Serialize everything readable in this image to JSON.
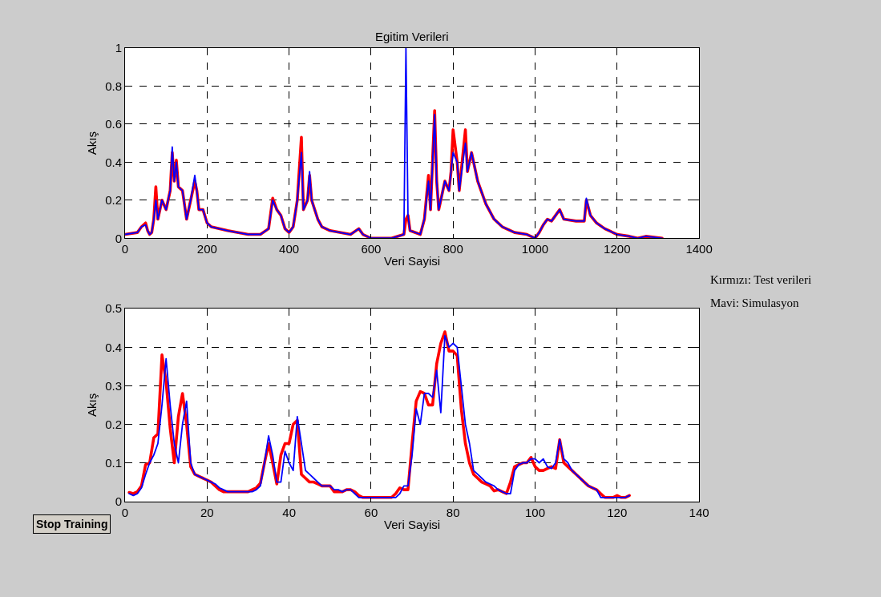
{
  "chart_data": [
    {
      "type": "line",
      "title": "Egitim Verileri",
      "xlabel": "Veri Sayisi",
      "ylabel": "Akış",
      "x": [
        0,
        30,
        40,
        50,
        55,
        60,
        65,
        70,
        75,
        80,
        90,
        100,
        110,
        115,
        120,
        125,
        130,
        140,
        150,
        160,
        170,
        175,
        180,
        190,
        200,
        210,
        250,
        300,
        330,
        350,
        360,
        370,
        380,
        390,
        400,
        410,
        420,
        430,
        435,
        445,
        450,
        455,
        470,
        480,
        500,
        550,
        570,
        580,
        600,
        650,
        680,
        685,
        690,
        695,
        720,
        730,
        740,
        745,
        755,
        760,
        765,
        770,
        780,
        790,
        795,
        800,
        810,
        815,
        830,
        835,
        845,
        850,
        860,
        880,
        900,
        920,
        950,
        980,
        1000,
        1010,
        1020,
        1030,
        1040,
        1060,
        1070,
        1100,
        1120,
        1125,
        1135,
        1150,
        1170,
        1200,
        1230,
        1250,
        1270,
        1310
      ],
      "xlim": [
        0,
        1400
      ],
      "xticks": [
        0,
        200,
        400,
        600,
        800,
        1000,
        1200,
        1400
      ],
      "ylim": [
        0,
        1
      ],
      "yticks": [
        0,
        0.2,
        0.4,
        0.6,
        0.8,
        1
      ],
      "grid": true,
      "line_style": "solid",
      "marker": "none",
      "series": [
        {
          "color": "#ff0000",
          "values": [
            0.02,
            0.03,
            0.06,
            0.08,
            0.04,
            0.02,
            0.03,
            0.1,
            0.27,
            0.1,
            0.2,
            0.15,
            0.25,
            0.45,
            0.3,
            0.41,
            0.27,
            0.25,
            0.1,
            0.2,
            0.3,
            0.25,
            0.15,
            0.15,
            0.08,
            0.06,
            0.04,
            0.02,
            0.02,
            0.05,
            0.21,
            0.15,
            0.12,
            0.05,
            0.03,
            0.06,
            0.2,
            0.53,
            0.15,
            0.2,
            0.33,
            0.2,
            0.1,
            0.06,
            0.04,
            0.02,
            0.05,
            0.02,
            0.0,
            0.0,
            0.02,
            0.1,
            0.12,
            0.04,
            0.02,
            0.1,
            0.33,
            0.15,
            0.67,
            0.3,
            0.15,
            0.2,
            0.3,
            0.25,
            0.35,
            0.57,
            0.4,
            0.25,
            0.57,
            0.35,
            0.45,
            0.4,
            0.3,
            0.18,
            0.1,
            0.06,
            0.03,
            0.02,
            0.0,
            0.03,
            0.07,
            0.1,
            0.09,
            0.15,
            0.1,
            0.09,
            0.09,
            0.2,
            0.12,
            0.08,
            0.05,
            0.02,
            0.01,
            0.0,
            0.01,
            0.0
          ]
        },
        {
          "color": "#0000ff",
          "values": [
            0.02,
            0.03,
            0.06,
            0.07,
            0.04,
            0.02,
            0.03,
            0.1,
            0.2,
            0.1,
            0.2,
            0.15,
            0.25,
            0.48,
            0.3,
            0.4,
            0.27,
            0.25,
            0.1,
            0.2,
            0.33,
            0.25,
            0.15,
            0.15,
            0.08,
            0.06,
            0.04,
            0.02,
            0.02,
            0.05,
            0.2,
            0.15,
            0.12,
            0.05,
            0.03,
            0.06,
            0.2,
            0.45,
            0.15,
            0.2,
            0.35,
            0.2,
            0.1,
            0.06,
            0.04,
            0.02,
            0.05,
            0.02,
            0.0,
            0.0,
            0.02,
            1.0,
            0.12,
            0.04,
            0.02,
            0.1,
            0.3,
            0.15,
            0.65,
            0.3,
            0.15,
            0.2,
            0.3,
            0.25,
            0.35,
            0.45,
            0.4,
            0.25,
            0.5,
            0.35,
            0.45,
            0.4,
            0.3,
            0.18,
            0.1,
            0.06,
            0.03,
            0.02,
            0.0,
            0.03,
            0.07,
            0.1,
            0.09,
            0.15,
            0.1,
            0.09,
            0.09,
            0.21,
            0.12,
            0.08,
            0.05,
            0.02,
            0.01,
            0.0,
            0.01,
            0.0
          ]
        }
      ]
    },
    {
      "type": "line",
      "xlabel": "Veri Sayisi",
      "ylabel": "Akış",
      "annotations": [
        "Kırmızı: Test verileri",
        "Mavi: Simulasyon",
        "Stop Training"
      ],
      "x": [
        1,
        2,
        3,
        4,
        5,
        6,
        7,
        8,
        9,
        10,
        11,
        12,
        13,
        14,
        15,
        16,
        17,
        18,
        19,
        20,
        21,
        22,
        23,
        24,
        25,
        26,
        27,
        28,
        29,
        30,
        31,
        32,
        33,
        34,
        35,
        36,
        37,
        38,
        39,
        40,
        41,
        42,
        43,
        44,
        45,
        46,
        47,
        48,
        49,
        50,
        51,
        52,
        53,
        54,
        55,
        56,
        57,
        58,
        59,
        60,
        61,
        62,
        63,
        64,
        65,
        66,
        67,
        68,
        69,
        70,
        71,
        72,
        73,
        74,
        75,
        76,
        77,
        78,
        79,
        80,
        81,
        82,
        83,
        84,
        85,
        86,
        87,
        88,
        89,
        90,
        91,
        92,
        93,
        94,
        95,
        96,
        97,
        98,
        99,
        100,
        101,
        102,
        103,
        104,
        105,
        106,
        107,
        108,
        109,
        110,
        111,
        112,
        113,
        114,
        115,
        116,
        117,
        118,
        119,
        120,
        121,
        122,
        123
      ],
      "xlim": [
        0,
        140
      ],
      "xticks": [
        0,
        20,
        40,
        60,
        80,
        100,
        120,
        140
      ],
      "ylim": [
        0,
        0.5
      ],
      "yticks": [
        0,
        0.1,
        0.2,
        0.3,
        0.4,
        0.5
      ],
      "grid": true,
      "line_style": "solid",
      "marker": "none",
      "series": [
        {
          "color": "#ff0000",
          "values": [
            0.023,
            0.02,
            0.025,
            0.04,
            0.095,
            0.1,
            0.165,
            0.175,
            0.38,
            0.31,
            0.19,
            0.1,
            0.22,
            0.28,
            0.2,
            0.09,
            0.07,
            0.065,
            0.06,
            0.055,
            0.05,
            0.04,
            0.03,
            0.025,
            0.025,
            0.025,
            0.025,
            0.025,
            0.025,
            0.025,
            0.03,
            0.035,
            0.047,
            0.1,
            0.15,
            0.1,
            0.045,
            0.12,
            0.15,
            0.15,
            0.2,
            0.21,
            0.07,
            0.06,
            0.05,
            0.05,
            0.045,
            0.04,
            0.04,
            0.04,
            0.025,
            0.025,
            0.025,
            0.03,
            0.03,
            0.025,
            0.015,
            0.01,
            0.01,
            0.01,
            0.01,
            0.01,
            0.01,
            0.01,
            0.01,
            0.02,
            0.035,
            0.03,
            0.03,
            0.15,
            0.26,
            0.285,
            0.28,
            0.25,
            0.25,
            0.357,
            0.41,
            0.44,
            0.39,
            0.39,
            0.378,
            0.24,
            0.15,
            0.1,
            0.07,
            0.06,
            0.05,
            0.045,
            0.04,
            0.027,
            0.03,
            0.025,
            0.02,
            0.05,
            0.09,
            0.095,
            0.1,
            0.1,
            0.114,
            0.09,
            0.08,
            0.08,
            0.085,
            0.09,
            0.085,
            0.16,
            0.1,
            0.09,
            0.08,
            0.07,
            0.06,
            0.05,
            0.04,
            0.035,
            0.03,
            0.02,
            0.01,
            0.01,
            0.01,
            0.015,
            0.01,
            0.01,
            0.015
          ]
        },
        {
          "color": "#0000ff",
          "values": [
            0.02,
            0.015,
            0.02,
            0.035,
            0.07,
            0.1,
            0.12,
            0.15,
            0.25,
            0.37,
            0.25,
            0.15,
            0.1,
            0.2,
            0.26,
            0.1,
            0.07,
            0.065,
            0.06,
            0.055,
            0.05,
            0.045,
            0.035,
            0.03,
            0.025,
            0.025,
            0.025,
            0.025,
            0.025,
            0.025,
            0.025,
            0.03,
            0.04,
            0.1,
            0.17,
            0.12,
            0.05,
            0.05,
            0.13,
            0.1,
            0.08,
            0.22,
            0.15,
            0.08,
            0.07,
            0.06,
            0.05,
            0.04,
            0.04,
            0.04,
            0.03,
            0.03,
            0.025,
            0.03,
            0.03,
            0.02,
            0.01,
            0.01,
            0.01,
            0.01,
            0.01,
            0.01,
            0.01,
            0.01,
            0.01,
            0.01,
            0.02,
            0.04,
            0.04,
            0.12,
            0.24,
            0.2,
            0.28,
            0.28,
            0.27,
            0.34,
            0.23,
            0.43,
            0.4,
            0.41,
            0.4,
            0.3,
            0.2,
            0.15,
            0.08,
            0.07,
            0.06,
            0.05,
            0.045,
            0.04,
            0.03,
            0.025,
            0.02,
            0.02,
            0.08,
            0.095,
            0.1,
            0.1,
            0.11,
            0.11,
            0.1,
            0.11,
            0.09,
            0.085,
            0.1,
            0.16,
            0.11,
            0.1,
            0.08,
            0.07,
            0.06,
            0.05,
            0.04,
            0.035,
            0.03,
            0.01,
            0.01,
            0.01,
            0.01,
            0.01,
            0.01,
            0.01,
            0.015
          ]
        }
      ]
    }
  ]
}
